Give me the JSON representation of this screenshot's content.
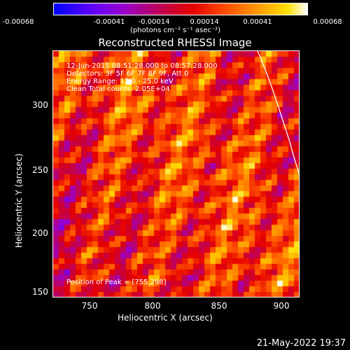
{
  "colorbar": {
    "ticks": [
      "-0.00068",
      "-0.00041",
      "-0.00014",
      "0.00014",
      "0.00041",
      "0.00068"
    ],
    "units_label": "(photons cm⁻² s⁻¹ asec⁻²)"
  },
  "title": "Reconstructed RHESSI Image",
  "info": {
    "line1": "12-Jun-2015 08:51:28.000 to 08:57:28.000",
    "line2": "Detectors: 3F 5F 6F 7F 8F 9F, Att 0",
    "line3": "Energy Range: 12.0 - 25.0 keV",
    "line4": "Clean     Total counts: 2.05E+04"
  },
  "peak_text": "Position of Peak = [755,298]",
  "axes": {
    "xlabel": "Heliocentric X (arcsec)",
    "ylabel": "Heliocentric Y (arcsec)",
    "xticks": [
      "750",
      "800",
      "850",
      "900"
    ],
    "yticks": [
      "300",
      "250",
      "200",
      "150"
    ]
  },
  "footer_timestamp": "21-May-2022 19:37"
}
